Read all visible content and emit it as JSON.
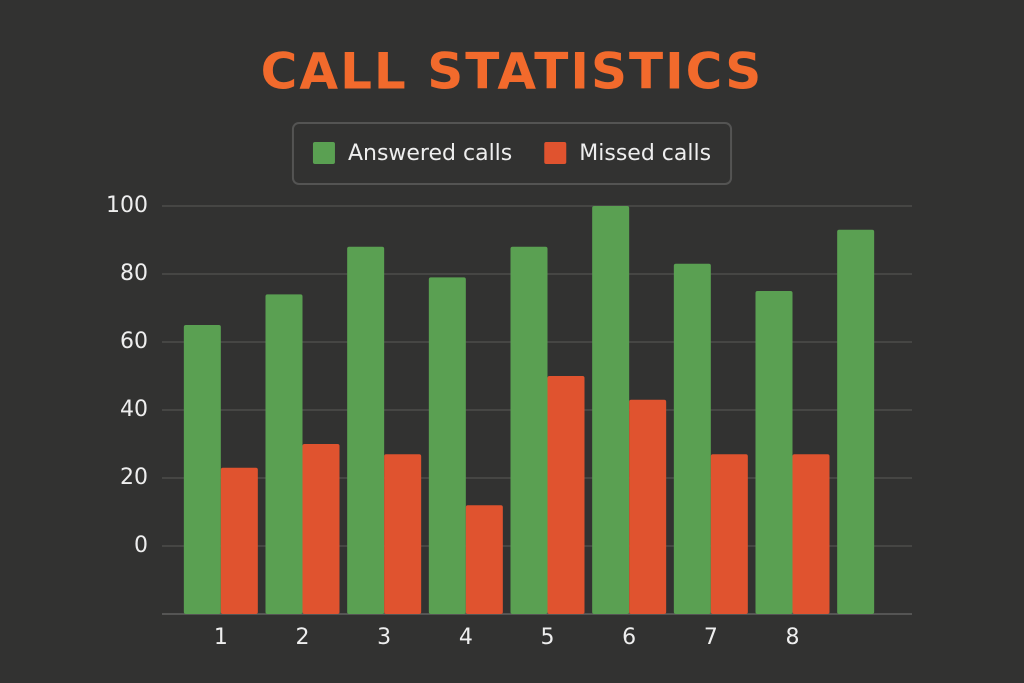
{
  "chart_data": {
    "type": "bar",
    "title": "CALL STATISTICS",
    "categories": [
      "1",
      "2",
      "3",
      "4",
      "5",
      "6",
      "7",
      "8",
      null
    ],
    "series": [
      {
        "name": "Answered calls",
        "color": "#5aa052",
        "values": [
          65,
          74,
          88,
          79,
          88,
          100,
          83,
          75,
          93
        ]
      },
      {
        "name": "Missed calls",
        "color": "#e0532f",
        "values": [
          23,
          30,
          27,
          12,
          50,
          43,
          27,
          27,
          null
        ]
      }
    ],
    "ylim": [
      -20,
      100
    ],
    "yticks": [
      0,
      20,
      40,
      60,
      80,
      100
    ],
    "grid": true,
    "legend": "top"
  }
}
